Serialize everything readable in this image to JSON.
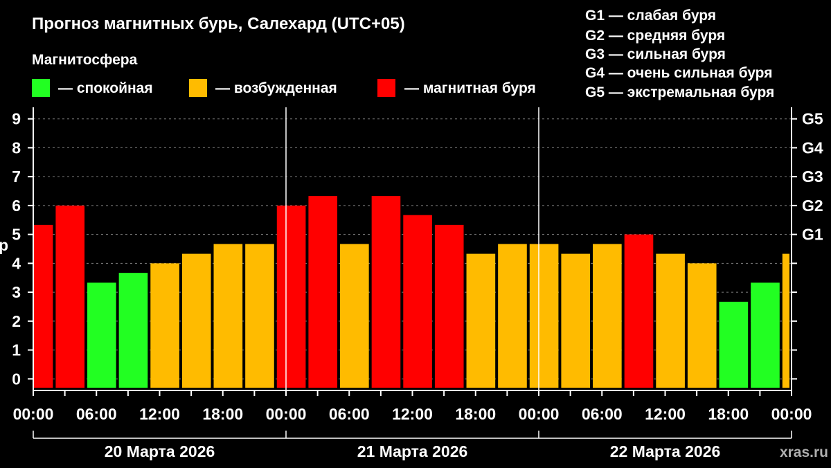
{
  "title": "Прогноз магнитных бурь, Салехард (UTC+05)",
  "legend": {
    "heading": "Магнитосфера",
    "items": [
      {
        "label": "— спокойная",
        "color": "#22ff22"
      },
      {
        "label": "— возбужденная",
        "color": "#ffbb00"
      },
      {
        "label": "— магнитная буря",
        "color": "#ff0000"
      }
    ]
  },
  "storm_scale": [
    "G1 — слабая буря",
    "G2 — средняя буря",
    "G3 — сильная буря",
    "G4 — очень сильная буря",
    "G5 — экстремальная буря"
  ],
  "source": "xras.ru",
  "colors": {
    "calm": "#22ff22",
    "excited": "#ffbb00",
    "storm": "#ff0000",
    "background": "#000000",
    "grid": "#808080"
  },
  "chart_data": {
    "type": "bar",
    "ylabel_partial": "р",
    "ylim": [
      -0.4,
      9.4
    ],
    "y_ticks": [
      "0",
      "1",
      "2",
      "3",
      "4",
      "5",
      "6",
      "7",
      "8",
      "9"
    ],
    "right_ticks": [
      {
        "value": 5,
        "label": "G1"
      },
      {
        "value": 6,
        "label": "G2"
      },
      {
        "value": 7,
        "label": "G3"
      },
      {
        "value": 8,
        "label": "G4"
      },
      {
        "value": 9,
        "label": "G5"
      }
    ],
    "x_range_hours": [
      0,
      72
    ],
    "x_tick_labels": [
      "00:00",
      "06:00",
      "12:00",
      "18:00",
      "00:00",
      "06:00",
      "12:00",
      "18:00",
      "00:00",
      "06:00",
      "12:00",
      "18:00",
      "00:00"
    ],
    "days": [
      "20 Марта 2026",
      "21 Марта 2026",
      "22 Марта 2026"
    ],
    "bars": [
      {
        "start": 0,
        "end": 2,
        "kp": 5.33,
        "status": "storm"
      },
      {
        "start": 2,
        "end": 5,
        "kp": 6.0,
        "status": "storm"
      },
      {
        "start": 5,
        "end": 8,
        "kp": 3.33,
        "status": "calm"
      },
      {
        "start": 8,
        "end": 11,
        "kp": 3.67,
        "status": "calm"
      },
      {
        "start": 11,
        "end": 14,
        "kp": 4.0,
        "status": "excited"
      },
      {
        "start": 14,
        "end": 17,
        "kp": 4.33,
        "status": "excited"
      },
      {
        "start": 17,
        "end": 20,
        "kp": 4.67,
        "status": "excited"
      },
      {
        "start": 20,
        "end": 23,
        "kp": 4.67,
        "status": "excited"
      },
      {
        "start": 23,
        "end": 26,
        "kp": 6.0,
        "status": "storm"
      },
      {
        "start": 26,
        "end": 29,
        "kp": 6.33,
        "status": "storm"
      },
      {
        "start": 29,
        "end": 32,
        "kp": 4.67,
        "status": "excited"
      },
      {
        "start": 32,
        "end": 35,
        "kp": 6.33,
        "status": "storm"
      },
      {
        "start": 35,
        "end": 38,
        "kp": 5.67,
        "status": "storm"
      },
      {
        "start": 38,
        "end": 41,
        "kp": 5.33,
        "status": "storm"
      },
      {
        "start": 41,
        "end": 44,
        "kp": 4.33,
        "status": "excited"
      },
      {
        "start": 44,
        "end": 47,
        "kp": 4.67,
        "status": "excited"
      },
      {
        "start": 47,
        "end": 50,
        "kp": 4.67,
        "status": "excited"
      },
      {
        "start": 50,
        "end": 53,
        "kp": 4.33,
        "status": "excited"
      },
      {
        "start": 53,
        "end": 56,
        "kp": 4.67,
        "status": "excited"
      },
      {
        "start": 56,
        "end": 59,
        "kp": 5.0,
        "status": "storm"
      },
      {
        "start": 59,
        "end": 62,
        "kp": 4.33,
        "status": "excited"
      },
      {
        "start": 62,
        "end": 65,
        "kp": 4.0,
        "status": "excited"
      },
      {
        "start": 65,
        "end": 68,
        "kp": 2.67,
        "status": "calm"
      },
      {
        "start": 68,
        "end": 71,
        "kp": 3.33,
        "status": "calm"
      },
      {
        "start": 71,
        "end": 72,
        "kp": 4.33,
        "status": "excited"
      }
    ]
  }
}
